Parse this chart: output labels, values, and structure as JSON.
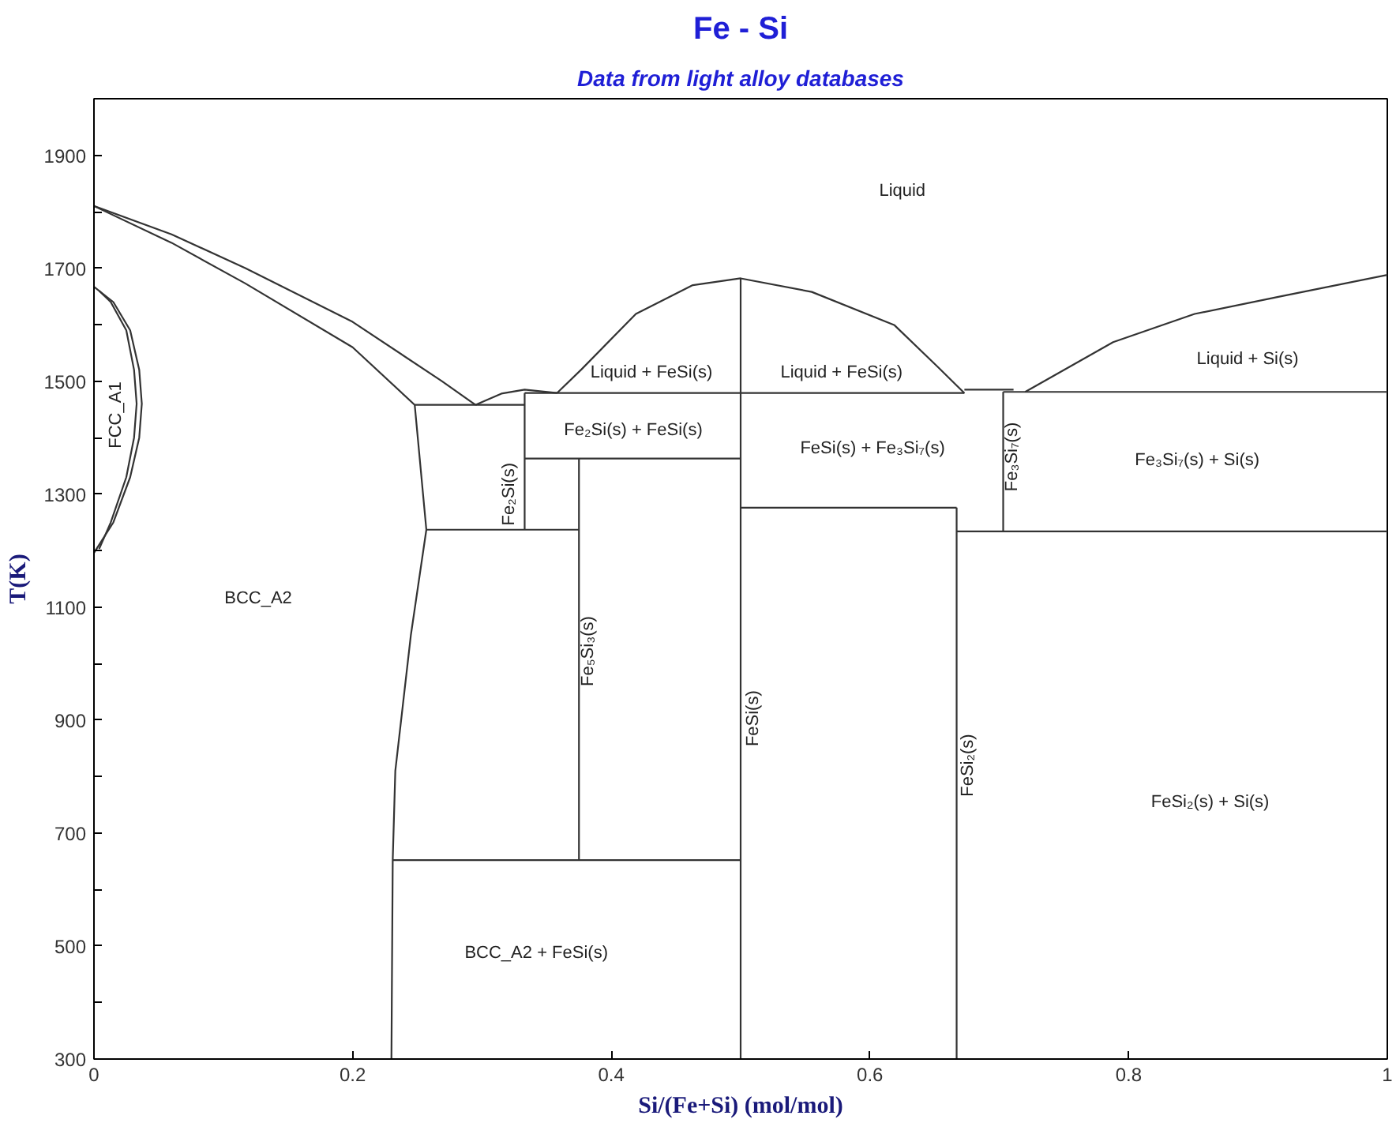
{
  "chart_data": {
    "type": "line",
    "title": "Fe - Si",
    "subtitle": "Data from light alloy databases",
    "xlabel": "Si/(Fe+Si) (mol/mol)",
    "ylabel": "T(K)",
    "xlim": [
      0,
      1
    ],
    "ylim": [
      300,
      2000
    ],
    "xticks": [
      0,
      0.2,
      0.4,
      0.6,
      0.8,
      1
    ],
    "yticks": [
      300,
      {
        "value": 400,
        "label": null
      },
      500,
      {
        "value": 600,
        "label": null
      },
      700,
      {
        "value": 800,
        "label": null
      },
      900,
      {
        "value": 1000,
        "label": null
      },
      1100,
      {
        "value": 1200,
        "label": null
      },
      1300,
      {
        "value": 1400,
        "label": null
      },
      1500,
      {
        "value": 1600,
        "label": null
      },
      1700,
      {
        "value": 1800,
        "label": null
      },
      1900
    ],
    "grid": false,
    "marker": "none",
    "line_style": "solid",
    "series": [
      {
        "color": "#333333",
        "x": [
          0,
          0.06,
          0.117,
          0.2,
          0.269,
          0.295
        ],
        "values": [
          1810,
          1760,
          1700,
          1605,
          1500,
          1458
        ]
      },
      {
        "color": "#333333",
        "x": [
          0,
          0.06,
          0.117,
          0.2,
          0.248
        ],
        "values": [
          1810,
          1745,
          1673,
          1560,
          1458
        ]
      },
      {
        "color": "#333333",
        "x": [
          0,
          0.015,
          0.028,
          0.035,
          0.037,
          0.035,
          0.028,
          0.015,
          0
        ],
        "values": [
          1667,
          1640,
          1590,
          1520,
          1460,
          1400,
          1330,
          1250,
          1196
        ]
      },
      {
        "color": "#333333",
        "x": [
          0.004,
          0.013,
          0.025,
          0.031,
          0.033,
          0.031,
          0.025,
          0.013,
          0.004
        ],
        "values": [
          1660,
          1640,
          1590,
          1520,
          1460,
          1400,
          1330,
          1250,
          1203
        ]
      },
      {
        "color": "#333333",
        "x": [
          0.248,
          0.333
        ],
        "values": [
          1458,
          1458
        ]
      },
      {
        "color": "#333333",
        "x": [
          0.295,
          0.315,
          0.333,
          0.358
        ],
        "values": [
          1458,
          1478,
          1485,
          1479
        ]
      },
      {
        "color": "#333333",
        "x": [
          0.333,
          0.673
        ],
        "values": [
          1479,
          1479
        ]
      },
      {
        "color": "#333333",
        "x": [
          0.673,
          0.711
        ],
        "values": [
          1485,
          1485
        ]
      },
      {
        "color": "#333333",
        "x": [
          0.703,
          1
        ],
        "values": [
          1481,
          1481
        ]
      },
      {
        "color": "#333333",
        "x": [
          0.358,
          0.377,
          0.419,
          0.463,
          0.5,
          0.555,
          0.619,
          0.653,
          0.673
        ],
        "values": [
          1479,
          1521,
          1619,
          1670,
          1682,
          1658,
          1599,
          1524,
          1479
        ]
      },
      {
        "color": "#333333",
        "x": [
          0.72,
          0.788,
          0.851,
          0.915,
          1
        ],
        "values": [
          1481,
          1569,
          1619,
          1649,
          1688
        ]
      },
      {
        "color": "#333333",
        "x": [
          0.5,
          0.5
        ],
        "values": [
          300,
          1682
        ]
      },
      {
        "color": "#333333",
        "x": [
          0.333,
          0.5
        ],
        "values": [
          1363,
          1363
        ]
      },
      {
        "color": "#333333",
        "x": [
          0.333,
          0.333
        ],
        "values": [
          1479,
          1237
        ]
      },
      {
        "color": "#333333",
        "x": [
          0.257,
          0.375
        ],
        "values": [
          1237,
          1237
        ]
      },
      {
        "color": "#333333",
        "x": [
          0.375,
          0.375
        ],
        "values": [
          1363,
          652
        ]
      },
      {
        "color": "#333333",
        "x": [
          0.231,
          0.5
        ],
        "values": [
          652,
          652
        ]
      },
      {
        "color": "#333333",
        "x": [
          0.248,
          0.257,
          0.245,
          0.233,
          0.231,
          0.23
        ],
        "values": [
          1458,
          1237,
          1050,
          810,
          652,
          300
        ]
      },
      {
        "color": "#333333",
        "x": [
          0.5,
          0.667
        ],
        "values": [
          1276,
          1276
        ]
      },
      {
        "color": "#333333",
        "x": [
          0.667,
          0.667
        ],
        "values": [
          1276,
          300
        ]
      },
      {
        "color": "#333333",
        "x": [
          0.667,
          1
        ],
        "values": [
          1234,
          1234
        ]
      },
      {
        "color": "#333333",
        "x": [
          0.703,
          0.703
        ],
        "values": [
          1481,
          1234
        ]
      }
    ],
    "annotations": [
      "Liquid",
      "Liquid + FeSi(s)",
      "Liquid + FeSi(s)",
      "Liquid + Si(s)",
      "Fe₂Si(s) + FeSi(s)",
      "FeSi(s) + Fe₃Si₇(s)",
      "Fe₃Si₇(s) + Si(s)",
      "BCC_A2",
      "FeSi₂(s) + Si(s)",
      "BCC_A2 + FeSi(s)",
      "FCC_A1",
      "Fe₂Si(s)",
      "Fe₅Si₃(s)",
      "FeSi(s)",
      "FeSi₂(s)",
      "Fe₃Si₇(s)"
    ]
  }
}
